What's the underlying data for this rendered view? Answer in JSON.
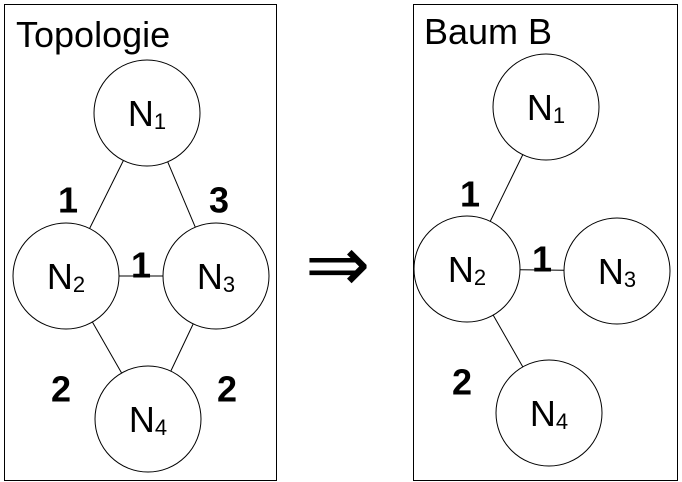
{
  "panels": [
    {
      "id": "topology",
      "title": "Topologie",
      "nodes": [
        {
          "id": "n1",
          "letter": "N",
          "sub": "1"
        },
        {
          "id": "n2",
          "letter": "N",
          "sub": "2"
        },
        {
          "id": "n3",
          "letter": "N",
          "sub": "3"
        },
        {
          "id": "n4",
          "letter": "N",
          "sub": "4"
        }
      ],
      "edges": [
        {
          "from": "n1",
          "to": "n2",
          "weight": "1"
        },
        {
          "from": "n1",
          "to": "n3",
          "weight": "3"
        },
        {
          "from": "n2",
          "to": "n3",
          "weight": "1"
        },
        {
          "from": "n2",
          "to": "n4",
          "weight": "2"
        },
        {
          "from": "n3",
          "to": "n4",
          "weight": "2"
        }
      ]
    },
    {
      "id": "tree",
      "title": "Baum B",
      "nodes": [
        {
          "id": "n1",
          "letter": "N",
          "sub": "1"
        },
        {
          "id": "n2",
          "letter": "N",
          "sub": "2"
        },
        {
          "id": "n3",
          "letter": "N",
          "sub": "3"
        },
        {
          "id": "n4",
          "letter": "N",
          "sub": "4"
        }
      ],
      "edges": [
        {
          "from": "n1",
          "to": "n2",
          "weight": "1"
        },
        {
          "from": "n2",
          "to": "n3",
          "weight": "1"
        },
        {
          "from": "n2",
          "to": "n4",
          "weight": "2"
        }
      ]
    }
  ],
  "arrow": {
    "symbol": "⇒"
  }
}
